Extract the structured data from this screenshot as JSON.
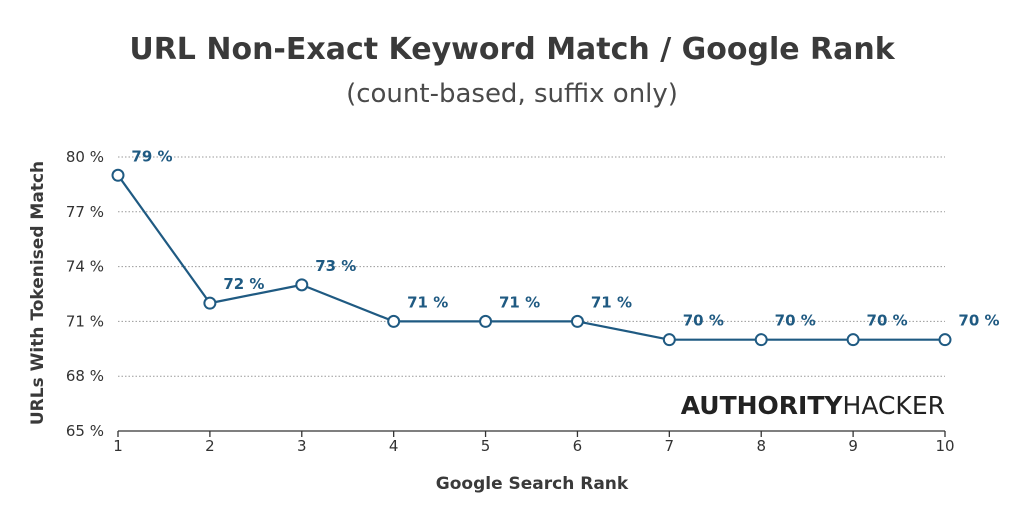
{
  "chart_data": {
    "type": "line",
    "title": "URL Non-Exact Keyword Match / Google Rank",
    "subtitle": "(count-based, suffix only)",
    "xlabel": "Google Search Rank",
    "ylabel": "URLs With Tokenised Match",
    "x": [
      1,
      2,
      3,
      4,
      5,
      6,
      7,
      8,
      9,
      10
    ],
    "y": [
      79,
      72,
      73,
      71,
      71,
      71,
      70,
      70,
      70,
      70
    ],
    "data_labels": [
      "79 %",
      "72 %",
      "73 %",
      "71 %",
      "71 %",
      "71 %",
      "70 %",
      "70 %",
      "70 %",
      "70 %"
    ],
    "x_ticks": [
      "1",
      "2",
      "3",
      "4",
      "5",
      "6",
      "7",
      "8",
      "9",
      "10"
    ],
    "y_ticks": [
      65,
      68,
      71,
      74,
      77,
      80
    ],
    "y_tick_labels": [
      "65 %",
      "68 %",
      "71 %",
      "74 %",
      "77 %",
      "80 %"
    ],
    "xlim": [
      1,
      10
    ],
    "ylim": [
      65,
      80
    ],
    "grid": "horizontal-dotted",
    "legend": "none",
    "line_color": "#1f5a82"
  },
  "brand": {
    "bold": "AUTHORITY",
    "light": "HACKER"
  }
}
